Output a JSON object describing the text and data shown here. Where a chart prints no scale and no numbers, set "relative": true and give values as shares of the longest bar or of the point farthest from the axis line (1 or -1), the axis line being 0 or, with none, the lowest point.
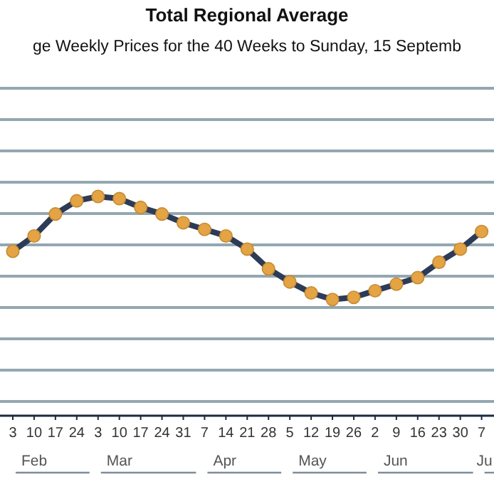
{
  "chart_data": {
    "type": "line",
    "title": "Total Regional Average",
    "subtitle": "ge Weekly Prices for the 40 Weeks to Sunday, 15 Septemb",
    "relative": true,
    "grid": "y",
    "marker": "circle",
    "line_style": "solid",
    "categories": [
      "3",
      "10",
      "17",
      "24",
      "3",
      "10",
      "17",
      "24",
      "31",
      "7",
      "14",
      "21",
      "28",
      "5",
      "12",
      "19",
      "26",
      "2",
      "9",
      "16",
      "23",
      "30",
      "7"
    ],
    "series": [
      {
        "color": "#2c3c58",
        "values": [
          0.75,
          0.82,
          0.92,
          0.98,
          1,
          0.99,
          0.95,
          0.92,
          0.88,
          0.85,
          0.82,
          0.76,
          0.67,
          0.61,
          0.56,
          0.53,
          0.54,
          0.57,
          0.6,
          0.63,
          0.7,
          0.76,
          0.84
        ]
      }
    ],
    "annotations": [
      "Feb",
      "Mar",
      "Apr",
      "May",
      "Jun",
      "Ju"
    ]
  }
}
